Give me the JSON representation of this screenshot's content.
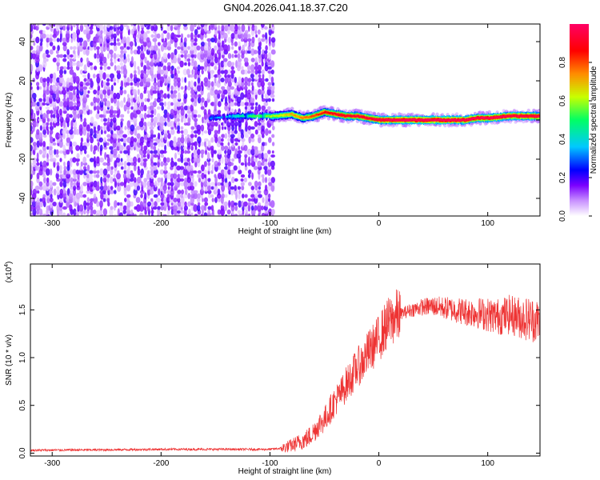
{
  "title": "GN04.2026.041.18.37.C20",
  "chart_data": [
    {
      "type": "heatmap",
      "xlabel": "Height of straight line (km)",
      "ylabel": "Frequency (Hz)",
      "xlim": [
        -320,
        148
      ],
      "ylim": [
        -49,
        49
      ],
      "x_ticks": [
        -300,
        -200,
        -100,
        0,
        100
      ],
      "y_ticks": [
        -40,
        -20,
        0,
        20,
        40
      ],
      "colorbar": {
        "label": "Normalized spectral amplitude",
        "range": [
          0.0,
          1.0
        ],
        "ticks": [
          0.0,
          0.2,
          0.4,
          0.6,
          0.8
        ],
        "colors": [
          "#ffffff",
          "#7a00ff",
          "#0000ff",
          "#00c8ff",
          "#00ff64",
          "#c8ff00",
          "#ff8c00",
          "#ff0000",
          "#ff0064"
        ]
      },
      "noise_region_x": [
        -320,
        -97
      ],
      "ridge": {
        "x": [
          -155,
          -130,
          -110,
          -95,
          -80,
          -70,
          -60,
          -50,
          -40,
          -30,
          -20,
          -10,
          0,
          10,
          20,
          40,
          60,
          80,
          90,
          100,
          120,
          148
        ],
        "frequency": [
          1,
          2,
          2,
          2,
          3,
          1,
          2,
          4,
          3,
          2,
          2,
          1,
          0,
          0,
          0,
          0,
          0,
          0,
          1,
          1,
          2,
          2
        ],
        "amplitude": [
          0.3,
          0.4,
          0.55,
          0.6,
          0.7,
          0.75,
          0.8,
          0.85,
          0.9,
          0.9,
          0.92,
          0.92,
          0.95,
          0.98,
          1.0,
          1.0,
          1.0,
          0.98,
          0.97,
          0.97,
          0.96,
          0.95
        ]
      }
    },
    {
      "type": "line",
      "xlabel": "Height of straight line (km)",
      "ylabel": "SNR (10 * v/v)",
      "y_multiplier": "(x10",
      "y_multiplier_exp": "4",
      "y_multiplier_close": ")",
      "xlim": [
        -320,
        148
      ],
      "ylim": [
        -0.03,
        1.98
      ],
      "x_ticks": [
        -300,
        -200,
        -100,
        0,
        100
      ],
      "y_ticks": [
        0.0,
        0.5,
        1.0,
        1.5
      ],
      "y_tick_labels": [
        "0.0",
        "0.5",
        "1.0",
        "1.5"
      ],
      "series": [
        {
          "color": "#ee3333",
          "x": [
            -320,
            -250,
            -200,
            -150,
            -110,
            -100,
            -90,
            -80,
            -70,
            -65,
            -60,
            -55,
            -50,
            -45,
            -40,
            -35,
            -30,
            -25,
            -20,
            -15,
            -10,
            -5,
            0,
            5,
            10,
            15,
            20,
            30,
            40,
            50,
            60,
            70,
            80,
            90,
            100,
            110,
            120,
            130,
            140,
            148
          ],
          "y": [
            0.03,
            0.035,
            0.04,
            0.04,
            0.04,
            0.04,
            0.05,
            0.08,
            0.13,
            0.16,
            0.22,
            0.3,
            0.35,
            0.45,
            0.55,
            0.62,
            0.72,
            0.8,
            0.9,
            0.95,
            1.05,
            1.12,
            1.2,
            1.3,
            1.38,
            1.42,
            1.46,
            1.5,
            1.53,
            1.54,
            1.52,
            1.5,
            1.48,
            1.47,
            1.45,
            1.43,
            1.45,
            1.42,
            1.4,
            1.38
          ]
        }
      ]
    }
  ]
}
